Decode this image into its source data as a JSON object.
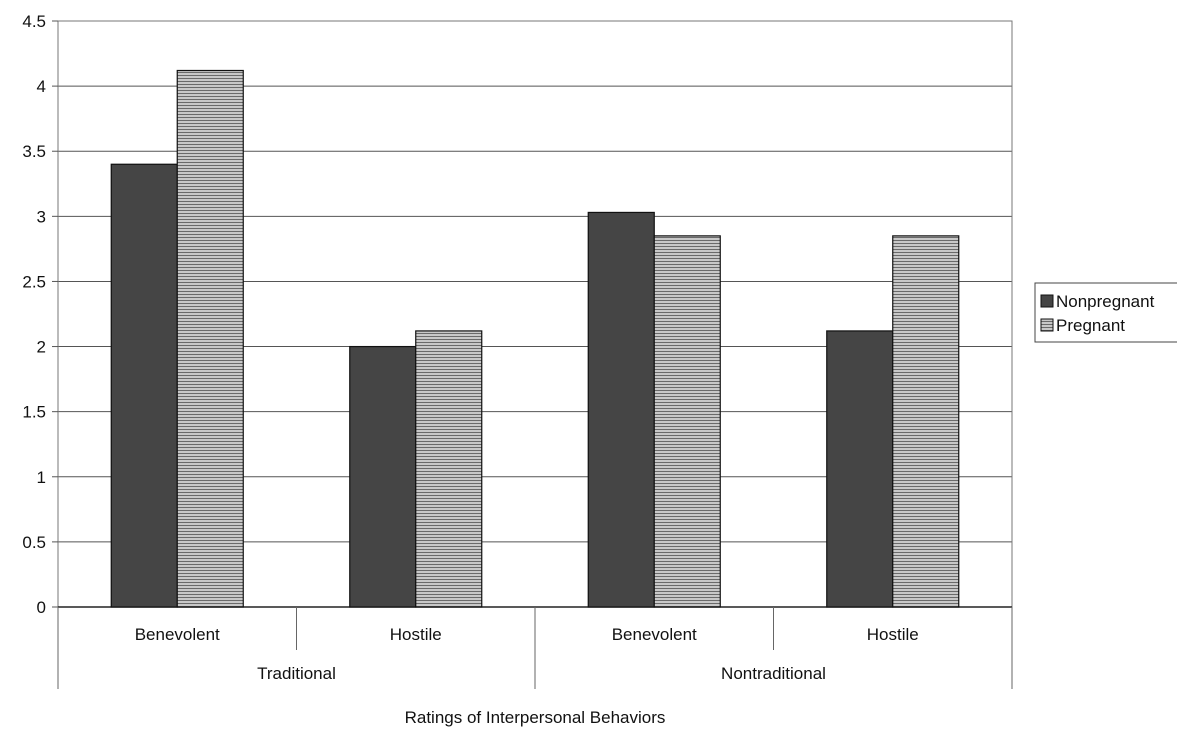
{
  "chart_data": {
    "type": "bar",
    "title": "",
    "xlabel": "Ratings of Interpersonal Behaviors",
    "ylabel": "",
    "ylim": [
      0,
      4.5
    ],
    "yticks": [
      "0",
      "0.5",
      "1",
      "1.5",
      "2",
      "2.5",
      "3",
      "3.5",
      "4",
      "4.5"
    ],
    "categories": [
      "Benevolent",
      "Hostile",
      "Benevolent",
      "Hostile"
    ],
    "groups": [
      {
        "label": "Traditional",
        "span": [
          0,
          1
        ]
      },
      {
        "label": "Nontraditional",
        "span": [
          2,
          3
        ]
      }
    ],
    "series": [
      {
        "name": "Nonpregnant",
        "values": [
          3.4,
          2.0,
          3.03,
          2.12
        ],
        "color": "#454545",
        "pattern": "solid"
      },
      {
        "name": "Pregnant",
        "values": [
          4.12,
          2.12,
          2.85,
          2.85
        ],
        "color": "#b5b5b5",
        "pattern": "horizontal-lines"
      }
    ],
    "grid": true,
    "legend_position": "right"
  }
}
